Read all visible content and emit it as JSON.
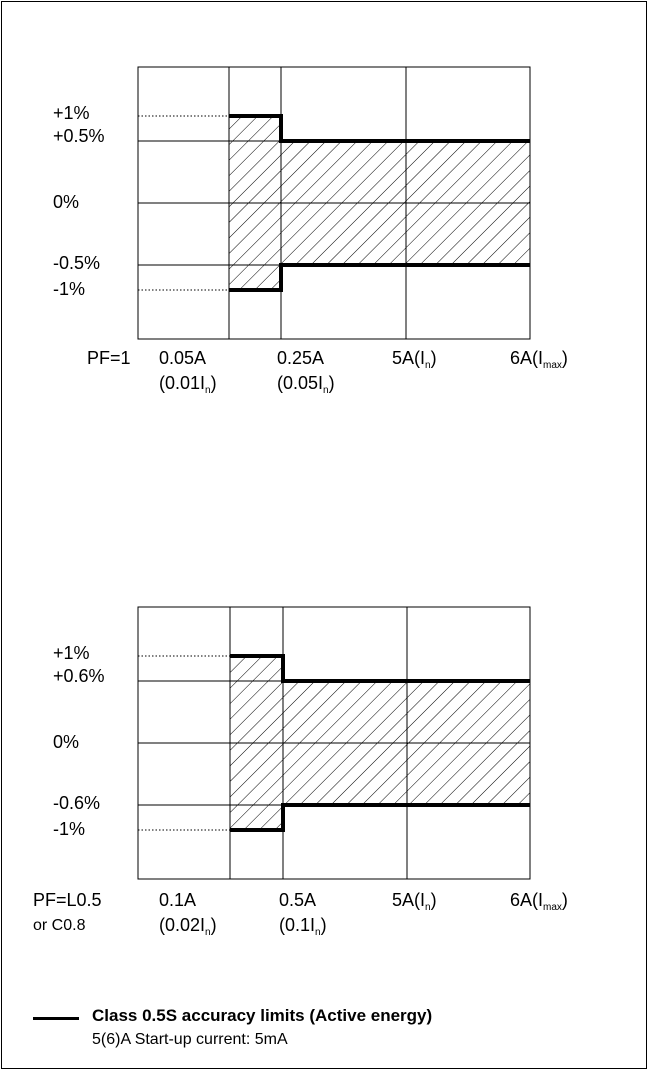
{
  "charts": [
    {
      "pf_label": "PF=1",
      "pf_label_2": "",
      "y_labels": [
        "+1%",
        "+0.5%",
        "0%",
        "-0.5%",
        "-1%"
      ],
      "x_labels": [
        {
          "main": "0.05A",
          "sub_pre": "(0.01I",
          "sub_idx": "n",
          "sub_post": ")"
        },
        {
          "main": "0.25A",
          "sub_pre": "(0.05I",
          "sub_idx": "n",
          "sub_post": ")"
        },
        {
          "main_pre": "5A(I",
          "main_idx": "n",
          "main_post": ")"
        },
        {
          "main_pre": "6A(I",
          "main_idx": "max",
          "main_post": ")"
        }
      ],
      "limits": {
        "low_current_error_pct": 1,
        "normal_error_pct": 0.5
      }
    },
    {
      "pf_label": "PF=L0.5",
      "pf_label_2": "or C0.8",
      "y_labels": [
        "+1%",
        "+0.6%",
        "0%",
        "-0.6%",
        "-1%"
      ],
      "x_labels": [
        {
          "main": "0.1A",
          "sub_pre": "(0.02I",
          "sub_idx": "n",
          "sub_post": ")"
        },
        {
          "main": "0.5A",
          "sub_pre": "(0.1I",
          "sub_idx": "n",
          "sub_post": ")"
        },
        {
          "main_pre": "5A(I",
          "main_idx": "n",
          "main_post": ")"
        },
        {
          "main_pre": "6A(I",
          "main_idx": "max",
          "main_post": ")"
        }
      ],
      "limits": {
        "low_current_error_pct": 1,
        "normal_error_pct": 0.6
      }
    }
  ],
  "legend": {
    "title": "Class 0.5S accuracy limits (Active energy)",
    "subtitle": "5(6)A Start-up current: 5mA"
  }
}
